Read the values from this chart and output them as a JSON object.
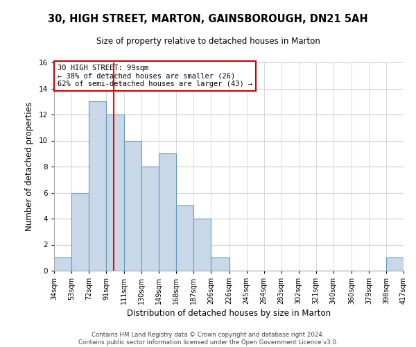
{
  "title": "30, HIGH STREET, MARTON, GAINSBOROUGH, DN21 5AH",
  "subtitle": "Size of property relative to detached houses in Marton",
  "xlabel": "Distribution of detached houses by size in Marton",
  "ylabel": "Number of detached properties",
  "bin_edges": [
    34,
    53,
    72,
    91,
    111,
    130,
    149,
    168,
    187,
    206,
    226,
    245,
    264,
    283,
    302,
    321,
    340,
    360,
    379,
    398,
    417
  ],
  "bar_heights": [
    1,
    6,
    13,
    12,
    10,
    8,
    9,
    5,
    4,
    1,
    0,
    0,
    0,
    0,
    0,
    0,
    0,
    0,
    0,
    1
  ],
  "bar_color": "#c8d8e8",
  "bar_edge_color": "#6699bb",
  "red_line_x": 99,
  "annotation_line1": "30 HIGH STREET: 99sqm",
  "annotation_line2": "← 38% of detached houses are smaller (26)",
  "annotation_line3": "62% of semi-detached houses are larger (43) →",
  "annotation_box_color": "#ffffff",
  "annotation_box_edge_color": "#cc0000",
  "ylim": [
    0,
    16
  ],
  "yticks": [
    0,
    2,
    4,
    6,
    8,
    10,
    12,
    14,
    16
  ],
  "footer_line1": "Contains HM Land Registry data © Crown copyright and database right 2024.",
  "footer_line2": "Contains public sector information licensed under the Open Government Licence v3.0.",
  "background_color": "#ffffff",
  "grid_color": "#cccccc",
  "title_fontsize": 10.5,
  "subtitle_fontsize": 8.5,
  "xlabel_fontsize": 8.5,
  "ylabel_fontsize": 8.5,
  "tick_fontsize": 7,
  "annotation_fontsize": 7.5,
  "footer_fontsize": 6.2
}
